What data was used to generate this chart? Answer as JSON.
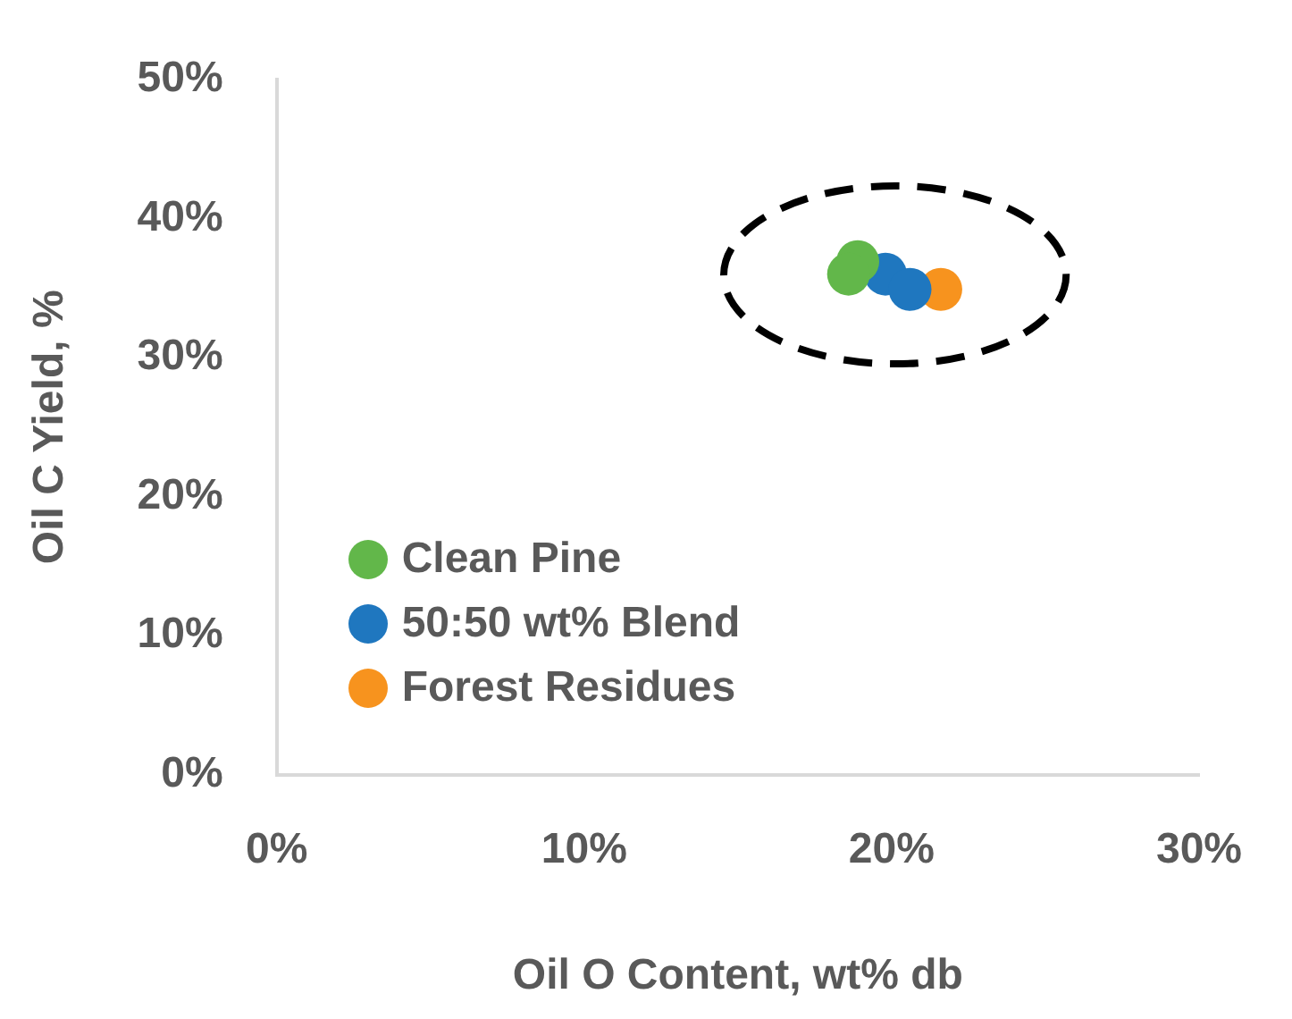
{
  "chart_data": {
    "type": "scatter",
    "xlabel": "Oil O Content, wt% db",
    "ylabel": "Oil C Yield, %",
    "xlim": [
      0,
      30
    ],
    "xticks": [
      {
        "value": 0,
        "label": "0%"
      },
      {
        "value": 10,
        "label": "10%"
      },
      {
        "value": 20,
        "label": "20%"
      },
      {
        "value": 30,
        "label": "30%"
      }
    ],
    "ylim": [
      0,
      50
    ],
    "yticks": [
      {
        "value": 0,
        "label": "0%"
      },
      {
        "value": 10,
        "label": "10%"
      },
      {
        "value": 20,
        "label": "20%"
      },
      {
        "value": 30,
        "label": "30%"
      },
      {
        "value": 40,
        "label": "40%"
      },
      {
        "value": 50,
        "label": "50%"
      }
    ],
    "grid": false,
    "legend": "bottom left",
    "marker": "circle",
    "series": [
      {
        "name": "Clean Pine",
        "color": "#62b74a",
        "x": [
          18.9,
          18.6
        ],
        "values": [
          36.9,
          36.0
        ]
      },
      {
        "name": "50:50 wt% Blend",
        "color": "#1f77bf",
        "x": [
          19.8,
          20.6
        ],
        "values": [
          36.0,
          34.9
        ]
      },
      {
        "name": "Forest Residues",
        "color": "#f7931e",
        "x": [
          21.6
        ],
        "values": [
          34.9
        ]
      }
    ]
  }
}
